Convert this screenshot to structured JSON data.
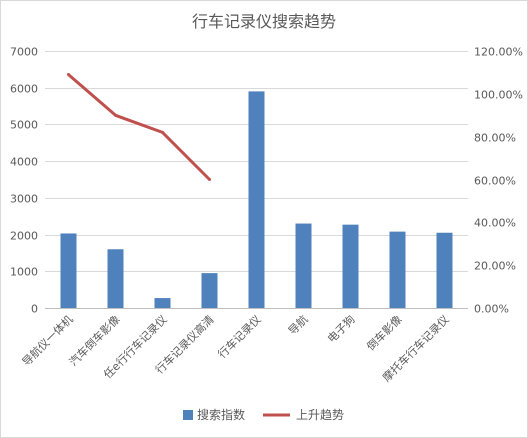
{
  "chart_data": {
    "type": "bar",
    "title": "行车记录仪搜索趋势",
    "categories": [
      "导航仪一体机",
      "汽车倒车影像",
      "任e行行车记录仪",
      "行车记录仪高清",
      "行车记录仪",
      "导航",
      "电子狗",
      "倒车影像",
      "摩托车行车记录仪"
    ],
    "series": [
      {
        "name": "搜索指数",
        "type": "bar",
        "axis": "left",
        "color": "#4f81bd",
        "values": [
          2030,
          1600,
          270,
          950,
          5900,
          2300,
          2270,
          2080,
          2050
        ]
      },
      {
        "name": "上升趋势",
        "type": "line",
        "axis": "right",
        "unit": "%",
        "color": "#c0504d",
        "values": [
          109,
          90,
          82,
          60,
          null,
          null,
          null,
          null,
          null
        ]
      }
    ],
    "ylim": [
      0,
      7000
    ],
    "y_ticks": [
      "0",
      "1000",
      "2000",
      "3000",
      "4000",
      "5000",
      "6000",
      "7000"
    ],
    "y2lim": [
      0,
      120
    ],
    "y2_ticks": [
      "0.00%",
      "20.00%",
      "40.00%",
      "60.00%",
      "80.00%",
      "100.00%",
      "120.00%"
    ],
    "grid": true,
    "legend": "bottom"
  }
}
